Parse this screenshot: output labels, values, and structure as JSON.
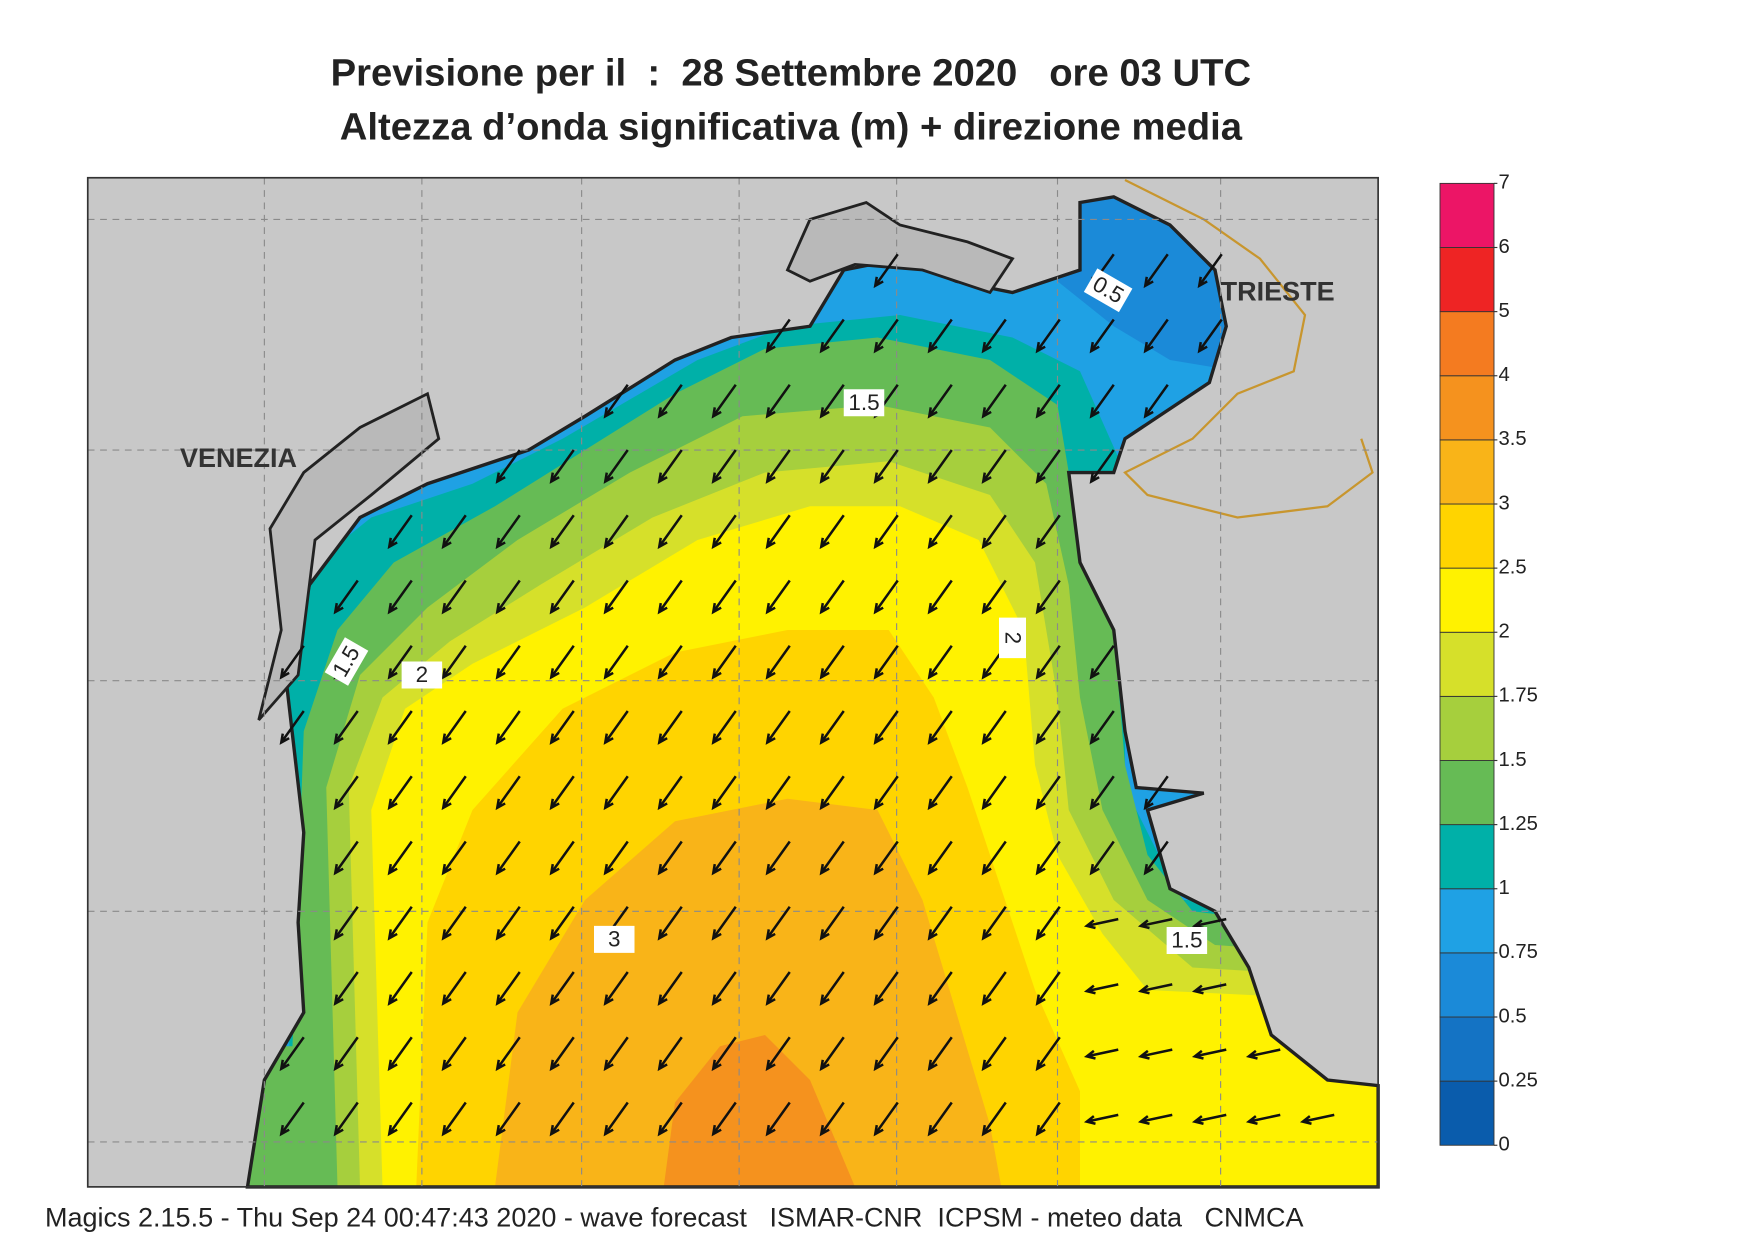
{
  "header": {
    "title_lines": [
      "Previsione per il  :  28 Settembre 2020   ore 03 UTC",
      "Altezza d’onda significativa (m) + direzione media"
    ]
  },
  "map": {
    "place_labels": [
      "VENEZIA",
      "TRIESTE"
    ],
    "contour_labels": [
      "0.5",
      "1.5",
      "1.5",
      "2",
      "2",
      "3",
      "1.5"
    ]
  },
  "colorbar": {
    "ticks": [
      0,
      0.25,
      0.5,
      0.75,
      1,
      1.25,
      1.5,
      1.75,
      2,
      2.5,
      3,
      3.5,
      4,
      5,
      6,
      7
    ],
    "colors": [
      "#0a5cac",
      "#1473c4",
      "#1b8ad8",
      "#1fa1e4",
      "#00b0a8",
      "#66bb55",
      "#a6cf3d",
      "#d6e02a",
      "#fff200",
      "#ffd400",
      "#f9b418",
      "#f5921e",
      "#f47b20",
      "#ee2424",
      "#ec1566"
    ]
  },
  "footer": "Magics 2.15.5 - Thu Sep 24 00:47:43 2020 - wave forecast   ISMAR-CNR  ICPSM - meteo data   CNMCA"
}
